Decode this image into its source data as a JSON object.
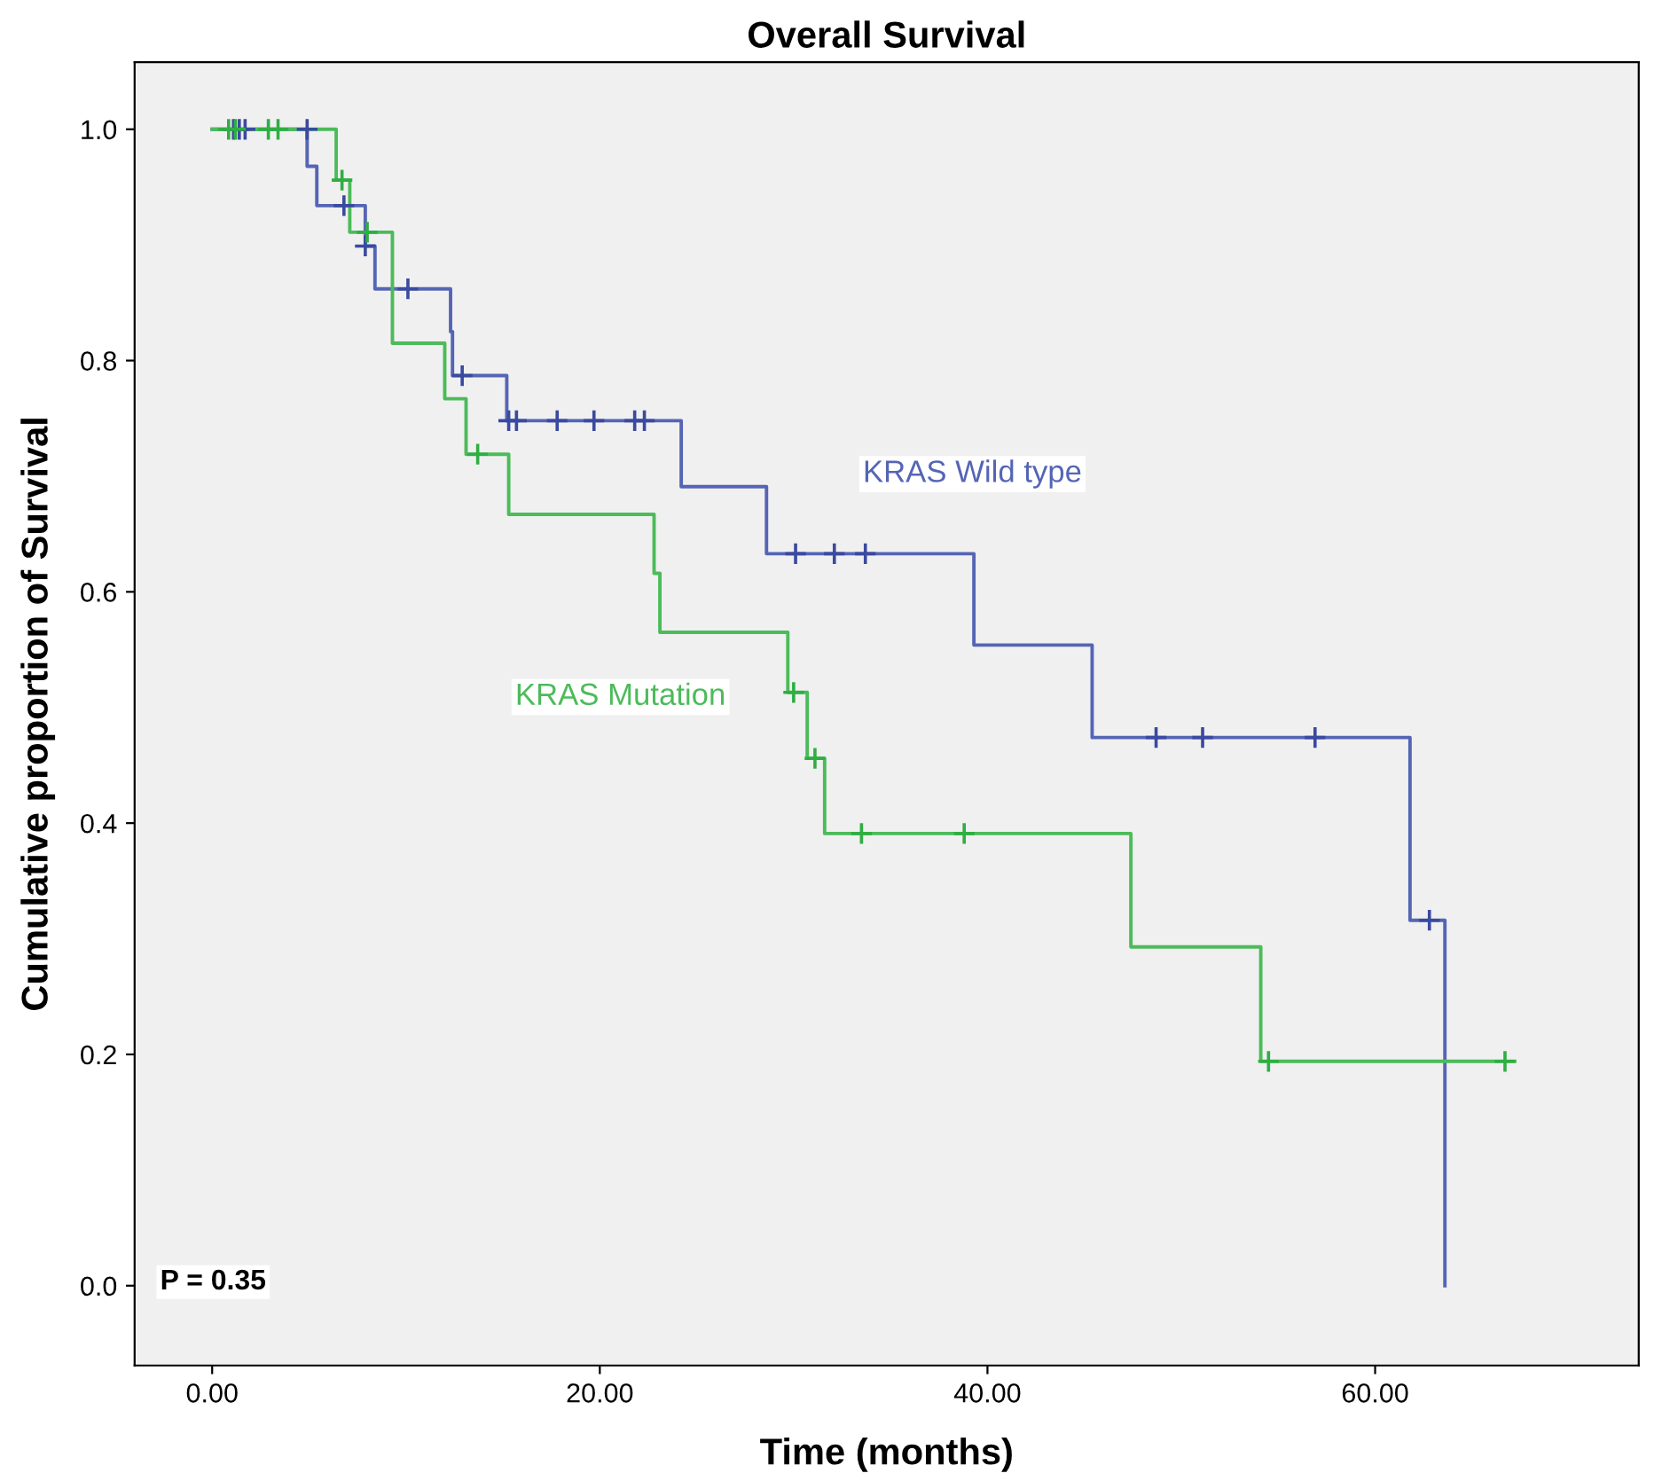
{
  "chart_data": {
    "type": "step",
    "title": "Overall Survival",
    "xlabel": "Time (months)",
    "ylabel": "Cumulative proportion of Survival",
    "series": [
      {
        "name": "KRAS Wild type",
        "color": "#5565b5",
        "marker": "none",
        "x": [
          0,
          4.9,
          5.4,
          7.9,
          8.4,
          12.3,
          12.4,
          15.2,
          24.2,
          28.6,
          39.3,
          45.4,
          61.8,
          63.6
        ],
        "values": [
          1.0,
          0.968,
          0.934,
          0.899,
          0.862,
          0.825,
          0.787,
          0.748,
          0.691,
          0.633,
          0.554,
          0.474,
          0.316,
          0.0
        ]
      },
      {
        "name": "KRAS Mutation",
        "color": "#4cbb5a",
        "marker": "none",
        "x": [
          0,
          6.4,
          7.1,
          9.3,
          12.0,
          13.1,
          15.3,
          22.8,
          23.1,
          29.7,
          30.7,
          31.6,
          47.4,
          54.1,
          67.2
        ],
        "values": [
          1.0,
          0.956,
          0.911,
          0.815,
          0.767,
          0.719,
          0.667,
          0.616,
          0.565,
          0.513,
          0.456,
          0.391,
          0.293,
          0.194,
          0.194
        ]
      },
      {
        "type": "scatter",
        "color": "#3a4aa0",
        "marker": "cross",
        "x": [
          1.1,
          1.4,
          1.7,
          4.9,
          6.8,
          7.9,
          10.1,
          12.9,
          15.3,
          15.7,
          17.8,
          19.7,
          21.8,
          22.3,
          30.1,
          32.1,
          33.7,
          48.7,
          51.1,
          56.9,
          62.8
        ],
        "values": [
          1.0,
          1.0,
          1.0,
          1.0,
          0.934,
          0.899,
          0.862,
          0.787,
          0.748,
          0.748,
          0.748,
          0.748,
          0.748,
          0.748,
          0.633,
          0.633,
          0.633,
          0.474,
          0.474,
          0.474,
          0.316
        ]
      },
      {
        "type": "scatter",
        "color": "#2fae42",
        "marker": "cross",
        "x": [
          0.85,
          1.2,
          2.9,
          3.4,
          6.7,
          8.0,
          13.7,
          30.0,
          31.1,
          33.5,
          38.8,
          54.5,
          66.7
        ],
        "values": [
          1.0,
          1.0,
          1.0,
          1.0,
          0.956,
          0.911,
          0.719,
          0.513,
          0.456,
          0.391,
          0.391,
          0.194,
          0.194
        ]
      }
    ],
    "xlim": [
      -4.0,
      73.6
    ],
    "ylim": [
      -0.069,
      1.058
    ],
    "xticks": [
      {
        "value": 0,
        "label": "0.00"
      },
      {
        "value": 20,
        "label": "20.00"
      },
      {
        "value": 40,
        "label": "40.00"
      },
      {
        "value": 60,
        "label": "60.00"
      }
    ],
    "yticks": [
      {
        "value": 0,
        "label": "0.0"
      },
      {
        "value": 0.2,
        "label": "0.2"
      },
      {
        "value": 0.4,
        "label": "0.4"
      },
      {
        "value": 0.6,
        "label": "0.6"
      },
      {
        "value": 0.8,
        "label": "0.8"
      },
      {
        "value": 1.0,
        "label": "1.0"
      }
    ],
    "grid": false,
    "legend": false,
    "annotations": [
      "P = 0.35"
    ]
  }
}
